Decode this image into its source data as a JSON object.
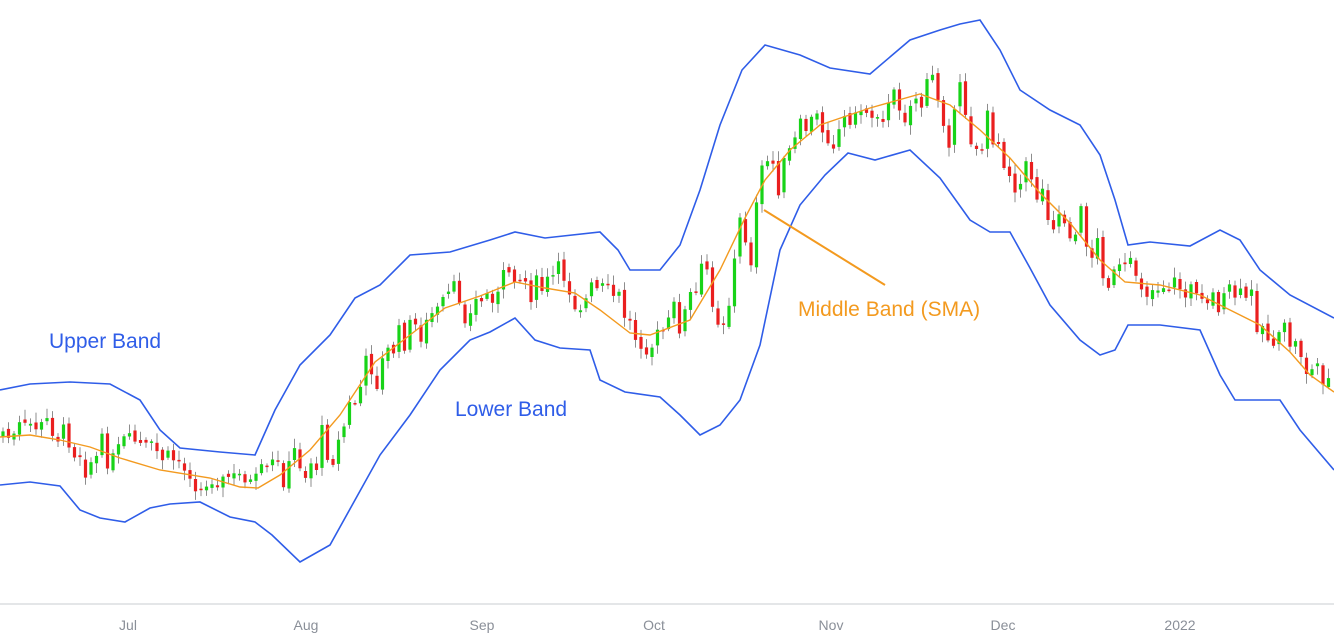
{
  "chart_data": {
    "type": "line",
    "title": "",
    "xlabel": "",
    "ylabel": "",
    "x_tick_labels": [
      "Jul",
      "Aug",
      "Sep",
      "Oct",
      "Nov",
      "Dec",
      "2022"
    ],
    "annotations": {
      "upper_band": "Upper Band",
      "lower_band": "Lower Band",
      "middle_band": "Middle Band (SMA)"
    },
    "colors": {
      "upper_band": "#2f5de8",
      "lower_band": "#2f5de8",
      "middle_band": "#f39a1f",
      "bull_candle": "#18d318",
      "bear_candle": "#ea1f1f",
      "axis_line": "#c8ccd2"
    },
    "grid": false,
    "y_axis_visible": false,
    "legend": "none"
  }
}
